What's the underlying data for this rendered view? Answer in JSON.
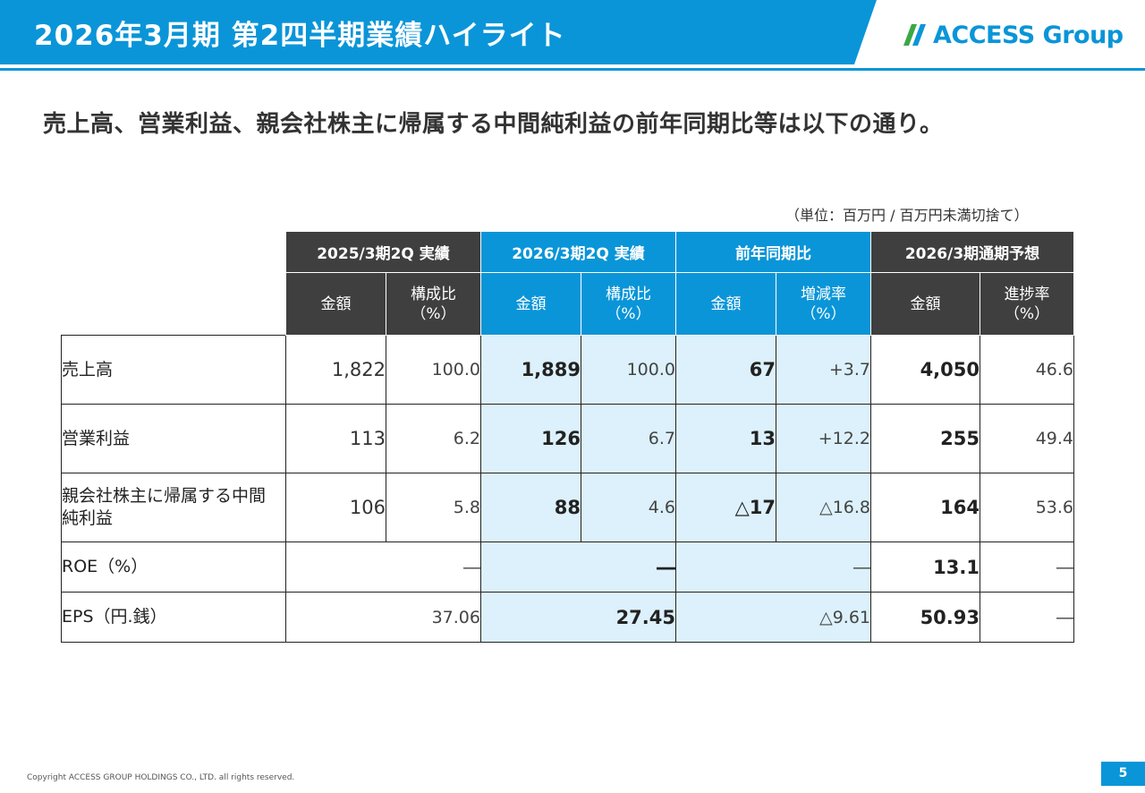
{
  "header": {
    "title": "2026年3月期 第2四半期業績ハイライト",
    "logo_text": "ACCESS Group",
    "brand_color": "#0a95d8"
  },
  "subtitle": "売上高、営業利益、親会社株主に帰属する中間純利益の前年同期比等は以下の通り。",
  "unit_note": "（単位：百万円 / 百万円未満切捨て）",
  "table": {
    "groups": [
      "2025/3期2Q 実績",
      "2026/3期2Q 実績",
      "前年同期比",
      "2026/3期通期予想"
    ],
    "subheaders": {
      "amount": "金額",
      "composition": "構成比",
      "change_rate": "増減率",
      "progress": "進捗率",
      "pct": "（%）"
    },
    "rows": [
      {
        "label": "売上高",
        "v2025": "1,822",
        "r2025": "100.0",
        "v2026": "1,889",
        "r2026": "100.0",
        "diff": "67",
        "rate": "+3.7",
        "forecast": "4,050",
        "progress": "46.6"
      },
      {
        "label": "営業利益",
        "v2025": "113",
        "r2025": "6.2",
        "v2026": "126",
        "r2026": "6.7",
        "diff": "13",
        "rate": "+12.2",
        "forecast": "255",
        "progress": "49.4"
      },
      {
        "label": "親会社株主に帰属する中間純利益",
        "v2025": "106",
        "r2025": "5.8",
        "v2026": "88",
        "r2026": "4.6",
        "diff": "△17",
        "rate": "△16.8",
        "forecast": "164",
        "progress": "53.6"
      }
    ],
    "roe": {
      "label": "ROE（%）",
      "v2025": "―",
      "v2026": "―",
      "diff": "―",
      "forecast": "13.1",
      "progress": "―"
    },
    "eps": {
      "label": "EPS（円.銭）",
      "v2025": "37.06",
      "v2026": "27.45",
      "diff": "△9.61",
      "forecast": "50.93",
      "progress": "―"
    }
  },
  "footer": {
    "copyright": "Copyright ACCESS GROUP HOLDINGS CO., LTD. all rights reserved.",
    "page": "5"
  }
}
